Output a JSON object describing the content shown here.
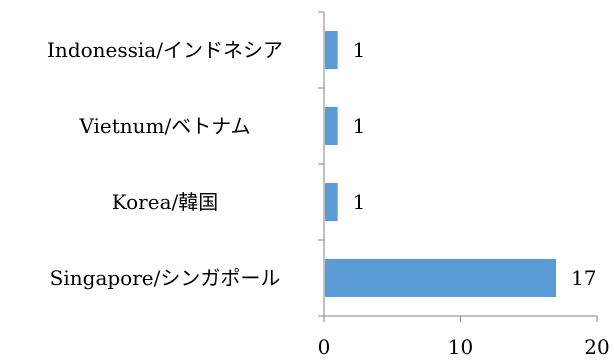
{
  "chart_data": {
    "type": "bar",
    "orientation": "horizontal",
    "categories": [
      "Singapore/シンガポール",
      "Korea/韓国",
      "Vietnum/ベトナム",
      "Indonessia/インドネシア"
    ],
    "values": [
      17,
      1,
      1,
      1
    ],
    "data_labels": [
      "17",
      "1",
      "1",
      "1"
    ],
    "xlim": [
      0,
      20
    ],
    "x_ticks": [
      "0",
      "10",
      "20"
    ],
    "title": "",
    "xlabel": "",
    "ylabel": "",
    "grid": false,
    "legend": "none",
    "bar_color": "#5B9BD5"
  }
}
